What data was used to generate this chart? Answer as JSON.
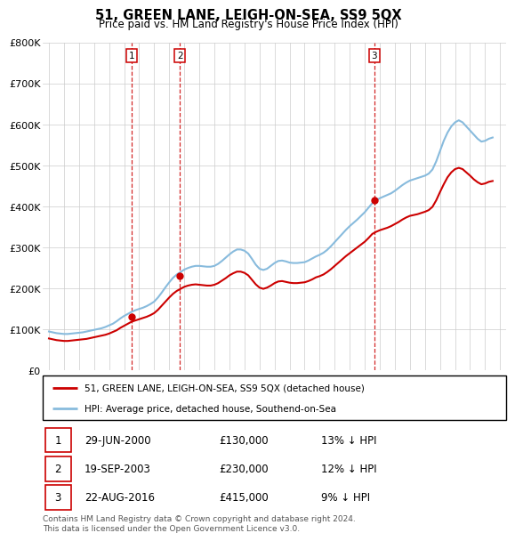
{
  "title": "51, GREEN LANE, LEIGH-ON-SEA, SS9 5QX",
  "subtitle": "Price paid vs. HM Land Registry's House Price Index (HPI)",
  "ylim": [
    0,
    800000
  ],
  "yticks": [
    0,
    100000,
    200000,
    300000,
    400000,
    500000,
    600000,
    700000,
    800000
  ],
  "ytick_labels": [
    "£0",
    "£100K",
    "£200K",
    "£300K",
    "£400K",
    "£500K",
    "£600K",
    "£700K",
    "£800K"
  ],
  "xlim_start": 1994.6,
  "xlim_end": 2025.4,
  "sale_color": "#cc0000",
  "hpi_color": "#88bbdd",
  "sale_label": "51, GREEN LANE, LEIGH-ON-SEA, SS9 5QX (detached house)",
  "hpi_label": "HPI: Average price, detached house, Southend-on-Sea",
  "transactions": [
    {
      "num": 1,
      "date_str": "29-JUN-2000",
      "year": 2000.49,
      "price": 130000,
      "pct": "13%",
      "dir": "↓"
    },
    {
      "num": 2,
      "date_str": "19-SEP-2003",
      "year": 2003.71,
      "price": 230000,
      "pct": "12%",
      "dir": "↓"
    },
    {
      "num": 3,
      "date_str": "22-AUG-2016",
      "year": 2016.64,
      "price": 415000,
      "pct": "9%",
      "dir": "↓"
    }
  ],
  "vline_color": "#cc0000",
  "footer": "Contains HM Land Registry data © Crown copyright and database right 2024.\nThis data is licensed under the Open Government Licence v3.0.",
  "hpi_data_years": [
    1995.0,
    1995.25,
    1995.5,
    1995.75,
    1996.0,
    1996.25,
    1996.5,
    1996.75,
    1997.0,
    1997.25,
    1997.5,
    1997.75,
    1998.0,
    1998.25,
    1998.5,
    1998.75,
    1999.0,
    1999.25,
    1999.5,
    1999.75,
    2000.0,
    2000.25,
    2000.5,
    2000.75,
    2001.0,
    2001.25,
    2001.5,
    2001.75,
    2002.0,
    2002.25,
    2002.5,
    2002.75,
    2003.0,
    2003.25,
    2003.5,
    2003.75,
    2004.0,
    2004.25,
    2004.5,
    2004.75,
    2005.0,
    2005.25,
    2005.5,
    2005.75,
    2006.0,
    2006.25,
    2006.5,
    2006.75,
    2007.0,
    2007.25,
    2007.5,
    2007.75,
    2008.0,
    2008.25,
    2008.5,
    2008.75,
    2009.0,
    2009.25,
    2009.5,
    2009.75,
    2010.0,
    2010.25,
    2010.5,
    2010.75,
    2011.0,
    2011.25,
    2011.5,
    2011.75,
    2012.0,
    2012.25,
    2012.5,
    2012.75,
    2013.0,
    2013.25,
    2013.5,
    2013.75,
    2014.0,
    2014.25,
    2014.5,
    2014.75,
    2015.0,
    2015.25,
    2015.5,
    2015.75,
    2016.0,
    2016.25,
    2016.5,
    2016.75,
    2017.0,
    2017.25,
    2017.5,
    2017.75,
    2018.0,
    2018.25,
    2018.5,
    2018.75,
    2019.0,
    2019.25,
    2019.5,
    2019.75,
    2020.0,
    2020.25,
    2020.5,
    2020.75,
    2021.0,
    2021.25,
    2021.5,
    2021.75,
    2022.0,
    2022.25,
    2022.5,
    2022.75,
    2023.0,
    2023.25,
    2023.5,
    2023.75,
    2024.0,
    2024.25,
    2024.5
  ],
  "hpi_values": [
    95000,
    93000,
    91000,
    90000,
    89000,
    89000,
    90000,
    91000,
    92000,
    93000,
    95000,
    97000,
    99000,
    101000,
    103000,
    106000,
    110000,
    114000,
    120000,
    127000,
    133000,
    138000,
    143000,
    147000,
    150000,
    153000,
    157000,
    162000,
    168000,
    178000,
    190000,
    203000,
    215000,
    226000,
    234000,
    240000,
    246000,
    250000,
    253000,
    255000,
    255000,
    254000,
    253000,
    253000,
    255000,
    260000,
    267000,
    275000,
    283000,
    290000,
    295000,
    295000,
    292000,
    285000,
    272000,
    258000,
    248000,
    245000,
    248000,
    255000,
    262000,
    267000,
    268000,
    266000,
    263000,
    262000,
    262000,
    263000,
    264000,
    268000,
    273000,
    278000,
    282000,
    287000,
    294000,
    303000,
    313000,
    323000,
    333000,
    343000,
    352000,
    360000,
    368000,
    377000,
    386000,
    397000,
    408000,
    415000,
    420000,
    424000,
    428000,
    432000,
    438000,
    445000,
    452000,
    458000,
    463000,
    466000,
    469000,
    472000,
    475000,
    480000,
    490000,
    510000,
    535000,
    560000,
    580000,
    595000,
    605000,
    610000,
    605000,
    595000,
    585000,
    575000,
    565000,
    558000,
    560000,
    565000,
    568000
  ],
  "sale_values": [
    78000,
    76000,
    74000,
    73000,
    72000,
    72000,
    73000,
    74000,
    75000,
    76000,
    77000,
    79000,
    81000,
    83000,
    85000,
    87000,
    90000,
    94000,
    98000,
    104000,
    109000,
    114000,
    119000,
    122000,
    125000,
    128000,
    131000,
    135000,
    140000,
    148000,
    158000,
    168000,
    178000,
    187000,
    194000,
    199000,
    204000,
    207000,
    209000,
    210000,
    209000,
    208000,
    207000,
    207000,
    209000,
    213000,
    219000,
    225000,
    232000,
    237000,
    241000,
    241000,
    238000,
    232000,
    221000,
    210000,
    202000,
    199000,
    202000,
    207000,
    213000,
    217000,
    218000,
    216000,
    214000,
    213000,
    213000,
    214000,
    215000,
    218000,
    222000,
    227000,
    230000,
    234000,
    240000,
    247000,
    255000,
    263000,
    271000,
    279000,
    286000,
    293000,
    300000,
    307000,
    314000,
    323000,
    333000,
    338000,
    342000,
    345000,
    348000,
    352000,
    357000,
    362000,
    368000,
    373000,
    377000,
    379000,
    381000,
    384000,
    387000,
    391000,
    399000,
    415000,
    435000,
    454000,
    471000,
    483000,
    491000,
    494000,
    491000,
    483000,
    475000,
    466000,
    459000,
    454000,
    456000,
    460000,
    462000
  ]
}
